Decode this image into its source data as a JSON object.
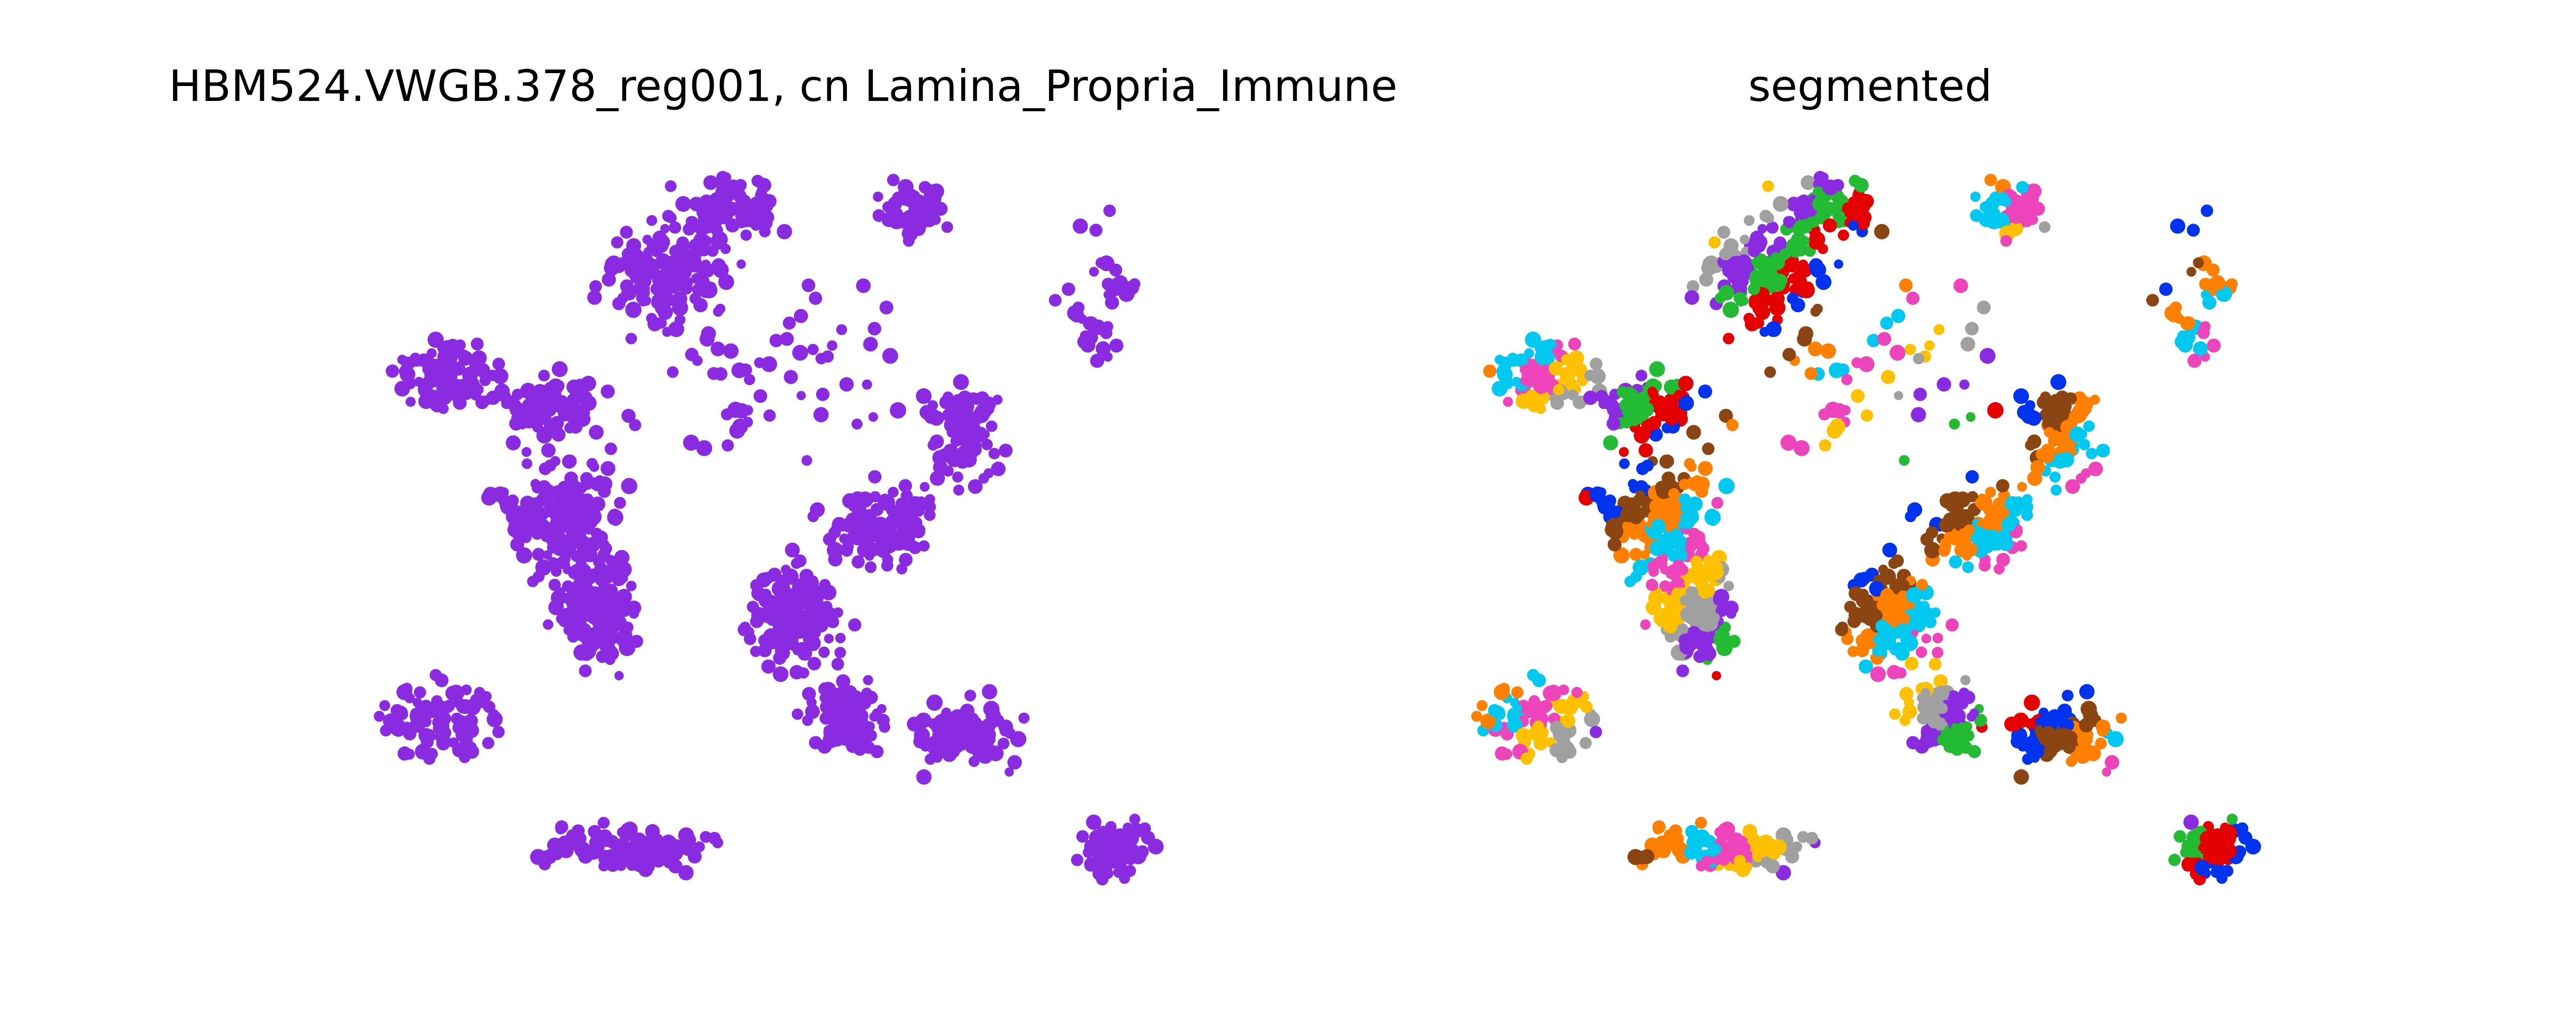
{
  "chart_data": [
    {
      "type": "scatter",
      "title": "HBM524.VWGB.378_reg001, cn Lamina_Propria_Immune",
      "xlabel": "",
      "ylabel": "",
      "axes_visible": false,
      "grid": false,
      "legend": "none",
      "color": "#8a2be2",
      "series": [
        {
          "values": [
            {
              "region": "upper-left cluster",
              "x": [
                0.0,
                0.15
              ],
              "y": [
                0.56,
                0.78
              ]
            },
            {
              "region": "upper-center cluster",
              "x": [
                0.26,
                0.56
              ],
              "y": [
                0.58,
                1.0
              ]
            },
            {
              "region": "upper-right band",
              "x": [
                0.62,
                0.8
              ],
              "y": [
                0.72,
                1.0
              ]
            },
            {
              "region": "left diagonal band",
              "x": [
                0.06,
                0.38
              ],
              "y": [
                0.2,
                0.72
              ]
            },
            {
              "region": "center diagonal band",
              "x": [
                0.4,
                0.8
              ],
              "y": [
                0.15,
                0.6
              ]
            },
            {
              "region": "lower-left cluster",
              "x": [
                0.0,
                0.3
              ],
              "y": [
                0.15,
                0.33
              ]
            },
            {
              "region": "bottom cluster",
              "x": [
                0.04,
                0.52
              ],
              "y": [
                0.0,
                0.12
              ]
            },
            {
              "region": "lower-right cluster",
              "x": [
                0.68,
                1.0
              ],
              "y": [
                0.0,
                0.2
              ]
            },
            {
              "region": "right sparse",
              "x": [
                0.78,
                1.0
              ],
              "y": [
                0.6,
                1.0
              ]
            }
          ]
        }
      ]
    },
    {
      "type": "scatter",
      "title": "segmented",
      "xlabel": "",
      "ylabel": "",
      "axes_visible": false,
      "grid": false,
      "legend": "none",
      "colors": [
        "#8a2be2",
        "#0033ee",
        "#00c8ee",
        "#a0a0a0",
        "#e40000",
        "#ff7f00",
        "#ffc000",
        "#22bb33",
        "#8b4513",
        "#ee44bb"
      ]
    }
  ]
}
